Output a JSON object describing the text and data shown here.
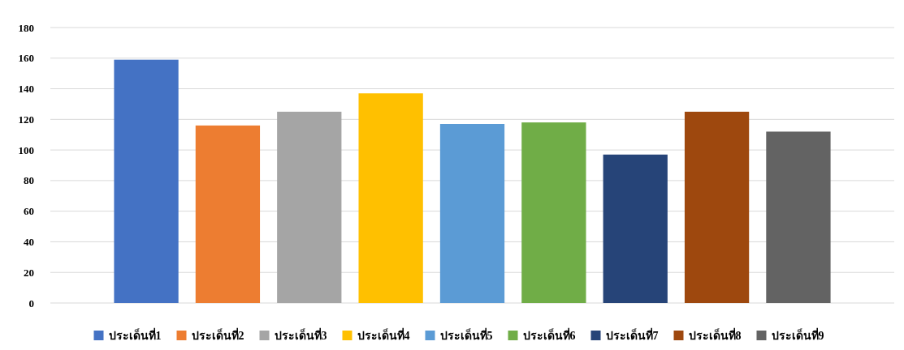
{
  "chart_data": {
    "type": "bar",
    "categories": [
      null
    ],
    "series": [
      {
        "name": "ประเด็นที่1",
        "color": "#4472c4",
        "values": [
          159
        ]
      },
      {
        "name": "ประเด็นที่2",
        "color": "#ed7d31",
        "values": [
          116
        ]
      },
      {
        "name": "ประเด็นที่3",
        "color": "#a5a5a5",
        "values": [
          125
        ]
      },
      {
        "name": "ประเด็นที่4",
        "color": "#ffc000",
        "values": [
          137
        ]
      },
      {
        "name": "ประเด็นที่5",
        "color": "#5b9bd5",
        "values": [
          117
        ]
      },
      {
        "name": "ประเด็นที่6",
        "color": "#70ad47",
        "values": [
          118
        ]
      },
      {
        "name": "ประเด็นที่7",
        "color": "#264478",
        "values": [
          97
        ]
      },
      {
        "name": "ประเด็นที่8",
        "color": "#9e480e",
        "values": [
          125
        ]
      },
      {
        "name": "ประเด็นที่9",
        "color": "#636363",
        "values": [
          112
        ]
      }
    ],
    "ylim": [
      0,
      180
    ],
    "yticks": [
      0,
      20,
      40,
      60,
      80,
      100,
      120,
      140,
      160,
      180
    ],
    "grid": "y",
    "legend": "bottom"
  }
}
